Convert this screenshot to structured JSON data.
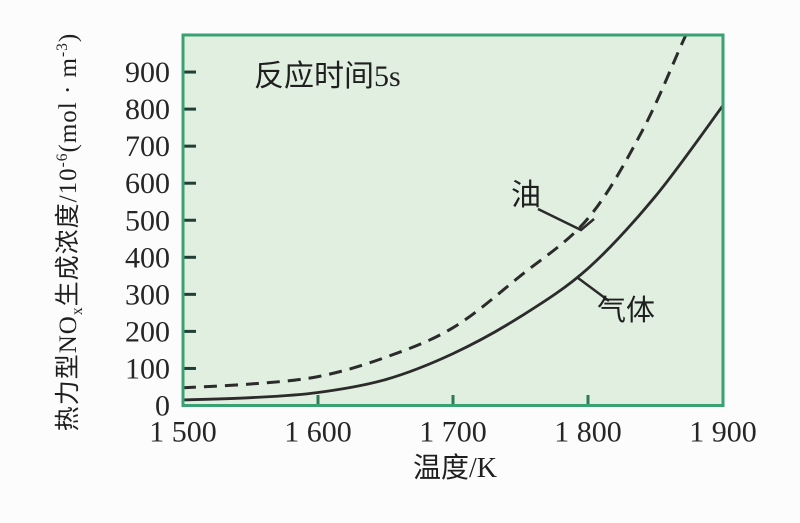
{
  "page": {
    "background_color": "#fcfcfc",
    "text_color": "#1f1f1f"
  },
  "chart_data": {
    "type": "line",
    "title": "",
    "annotation": "反应时间5s",
    "xlabel": "温度/K",
    "ylabel": "热力型NOx生成浓度/10⁻⁶(mol·m⁻³)",
    "ylabel_parts": [
      {
        "t": "热力型NO"
      },
      {
        "sub": "x"
      },
      {
        "t": "生成浓度/10"
      },
      {
        "sup": "-6"
      },
      {
        "t": "(mol · m"
      },
      {
        "sup": "-3"
      },
      {
        "t": ")"
      }
    ],
    "x_range": [
      1500,
      1900
    ],
    "y_range": [
      0,
      1000
    ],
    "grid": false,
    "legend_position": "inline-curve-labels",
    "x_ticks": [
      {
        "v": 1500,
        "label": "1 500"
      },
      {
        "v": 1600,
        "label": "1 600"
      },
      {
        "v": 1700,
        "label": "1 700"
      },
      {
        "v": 1800,
        "label": "1 800"
      },
      {
        "v": 1900,
        "label": "1 900"
      }
    ],
    "y_ticks": [
      {
        "v": 0,
        "label": "0"
      },
      {
        "v": 100,
        "label": "100"
      },
      {
        "v": 200,
        "label": "200"
      },
      {
        "v": 300,
        "label": "300"
      },
      {
        "v": 400,
        "label": "400"
      },
      {
        "v": 500,
        "label": "500"
      },
      {
        "v": 600,
        "label": "600"
      },
      {
        "v": 700,
        "label": "700"
      },
      {
        "v": 800,
        "label": "800"
      },
      {
        "v": 900,
        "label": "900"
      }
    ],
    "colors": {
      "plot_background": "#e1efe0",
      "plot_border": "#3aa173",
      "curve": "#2b2b2b",
      "left_tick": "#223f35",
      "bottom_tick": "#2e7a58",
      "tick_label": "#262626"
    },
    "series": [
      {
        "name": "油",
        "style": "dashed",
        "points": [
          [
            1500,
            48
          ],
          [
            1550,
            58
          ],
          [
            1600,
            78
          ],
          [
            1650,
            130
          ],
          [
            1700,
            210
          ],
          [
            1750,
            350
          ],
          [
            1800,
            505
          ],
          [
            1840,
            740
          ],
          [
            1870,
            980
          ],
          [
            1885,
            1100
          ]
        ]
      },
      {
        "name": "气体",
        "style": "solid",
        "points": [
          [
            1500,
            15
          ],
          [
            1550,
            21
          ],
          [
            1600,
            35
          ],
          [
            1650,
            70
          ],
          [
            1700,
            140
          ],
          [
            1750,
            240
          ],
          [
            1800,
            370
          ],
          [
            1850,
            565
          ],
          [
            1900,
            810
          ]
        ]
      }
    ]
  }
}
